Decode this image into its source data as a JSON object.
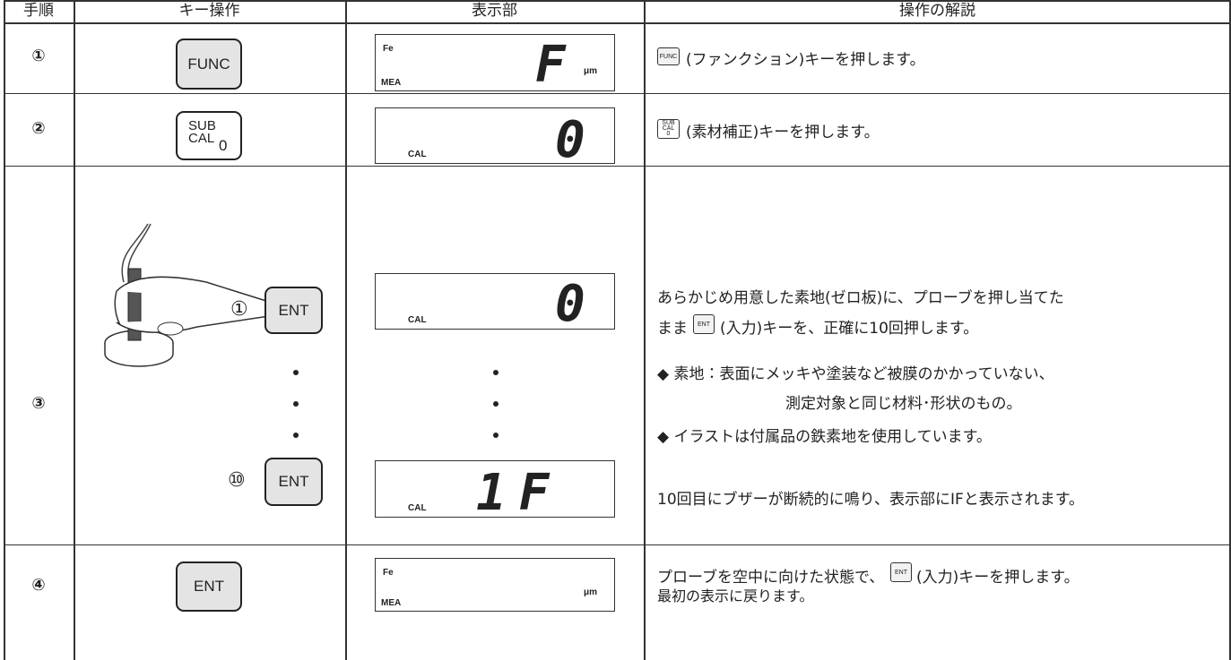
{
  "table": {
    "header": [
      "手順",
      "キー操作",
      "表示部",
      "操作の解説"
    ],
    "rows": [
      {
        "step": "①",
        "key": "FUNC",
        "display": {
          "top": "Fe",
          "mode": "MEA",
          "unit": "μm",
          "digits": "F"
        },
        "icon": "FUNC",
        "text": "(ファンクション)キーを押します。"
      },
      {
        "step": "②",
        "key": [
          "SUB",
          "CAL",
          "0"
        ],
        "display": {
          "mode": "CAL",
          "digits": "0"
        },
        "icon": [
          "SUB",
          "CAL",
          "0"
        ],
        "text": "(素材補正)キーを押します。"
      },
      {
        "step": "③",
        "presses": [
          {
            "number": "①",
            "key": "ENT"
          },
          {
            "number": "⑩",
            "key": "ENT"
          }
        ],
        "displays": [
          {
            "mode": "CAL",
            "digits": "0"
          },
          {
            "mode": "CAL",
            "digits": "1F"
          }
        ],
        "line1": "あらかじめ用意した素地(ゼロ板)に、プローブを押し当てた",
        "line2_before": "まま",
        "icon": "ENT",
        "line2_after": "(入力)キーを、正確に10回押します。",
        "notes": [
          "◆ 素地：表面にメッキや塗装など被膜のかかっていない、",
          "測定対象と同じ材料･形状のもの。",
          "◆ イラストは付属品の鉄素地を使用しています。"
        ],
        "result": "10回目にブザーが断続的に鳴り、表示部にIFと表示されます。"
      },
      {
        "step": "④",
        "key": "ENT",
        "display": {
          "top": "Fe",
          "mode": "MEA",
          "unit": "μm"
        },
        "line1_before": "プローブを空中に向けた状態で、",
        "icon": "ENT",
        "line1_after": "(入力)キーを押します。",
        "line2": "最初の表示に戻ります。"
      }
    ]
  }
}
